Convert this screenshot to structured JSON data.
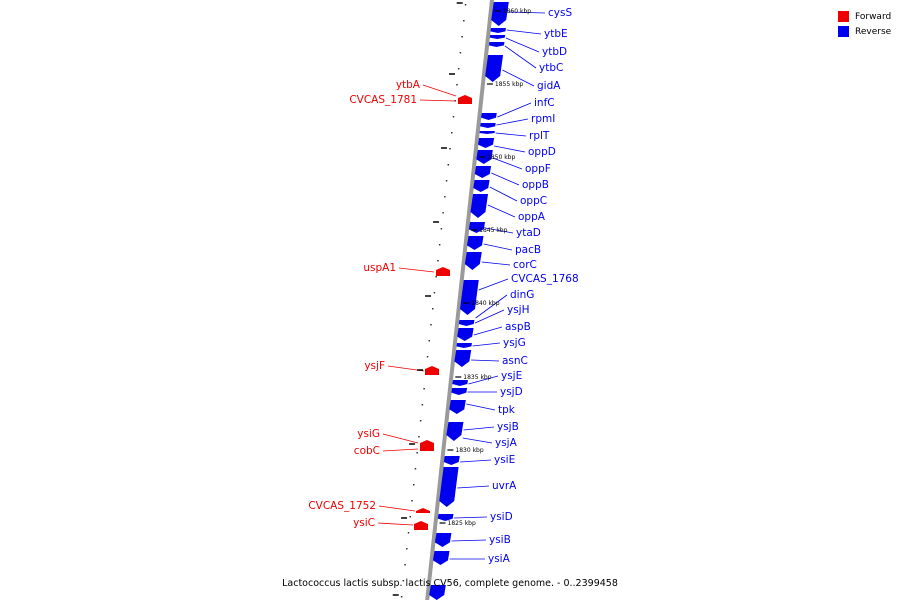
{
  "legend": {
    "forward_label": "Forward",
    "reverse_label": "Reverse",
    "forward_color": "#ee0000",
    "reverse_color": "#0000ee"
  },
  "caption": "Lactococcus lactis subsp. lactis CV56, complete genome. - 0..2399458",
  "reverse_genes": [
    "cysS",
    "ytbE",
    "ytbD",
    "ytbC",
    "gidA",
    "infC",
    "rpmI",
    "rplT",
    "oppD",
    "oppF",
    "oppB",
    "oppC",
    "oppA",
    "ytaD",
    "pacB",
    "corC",
    "CVCAS_1768",
    "dinG",
    "ysjH",
    "aspB",
    "ysjG",
    "asnC",
    "ysjE",
    "ysjD",
    "tpk",
    "ysjB",
    "ysjA",
    "ysiE",
    "uvrA",
    "ysiD",
    "ysiB",
    "ysiA"
  ],
  "forward_genes": [
    "ytbA",
    "CVCAS_1781",
    "uspA1",
    "ysjF",
    "ysiG",
    "cobC",
    "CVCAS_1752",
    "ysiC"
  ],
  "ticks": [
    "1860 kbp",
    "1855 kbp",
    "1850 kbp",
    "1845 kbp",
    "1840 kbp",
    "1835 kbp",
    "1830 kbp",
    "1825 kbp"
  ]
}
